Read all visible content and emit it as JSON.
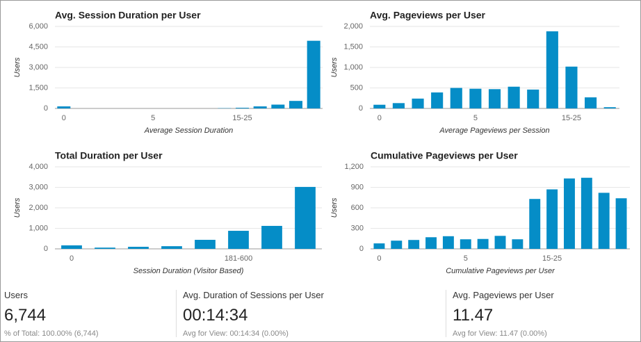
{
  "chart_data": [
    {
      "type": "bar",
      "title": "Avg. Session Duration per User",
      "y_label": "Users",
      "x_label": "Average Session Duration",
      "color": "#058dc7",
      "categories": [
        "0",
        null,
        null,
        null,
        null,
        "5",
        null,
        null,
        null,
        null,
        "15-25",
        null,
        null,
        null,
        null
      ],
      "values": [
        150,
        0,
        0,
        0,
        0,
        0,
        0,
        0,
        0,
        20,
        50,
        150,
        280,
        550,
        4950
      ],
      "ylim": [
        0,
        6000
      ],
      "yticks": [
        0,
        {
          "value": 1500,
          "label": "1,500"
        },
        {
          "value": 3000,
          "label": "3,000"
        },
        {
          "value": 4500,
          "label": "4,500"
        },
        {
          "value": 6000,
          "label": "6,000"
        }
      ],
      "grid": true
    },
    {
      "type": "bar",
      "title": "Avg. Pageviews per User",
      "y_label": "Users",
      "x_label": "Average Pageviews per Session",
      "color": "#058dc7",
      "categories": [
        "0",
        null,
        null,
        null,
        null,
        "5",
        null,
        null,
        null,
        null,
        "15-25",
        null,
        null
      ],
      "values": [
        90,
        130,
        240,
        390,
        500,
        480,
        470,
        530,
        460,
        1880,
        1020,
        270,
        30
      ],
      "ylim": [
        0,
        2000
      ],
      "yticks": [
        0,
        500,
        {
          "value": 1000,
          "label": "1,000"
        },
        {
          "value": 1500,
          "label": "1,500"
        },
        {
          "value": 2000,
          "label": "2,000"
        }
      ],
      "grid": true
    },
    {
      "type": "bar",
      "title": "Total Duration per User",
      "y_label": "Users",
      "x_label": "Session Duration (Visitor Based)",
      "color": "#058dc7",
      "categories": [
        "0",
        null,
        null,
        null,
        null,
        "181-600",
        null,
        null
      ],
      "values": [
        170,
        60,
        100,
        130,
        440,
        880,
        1120,
        3020
      ],
      "ylim": [
        0,
        4000
      ],
      "yticks": [
        0,
        {
          "value": 1000,
          "label": "1,000"
        },
        {
          "value": 2000,
          "label": "2,000"
        },
        {
          "value": 3000,
          "label": "3,000"
        },
        {
          "value": 4000,
          "label": "4,000"
        }
      ],
      "grid": true
    },
    {
      "type": "bar",
      "title": "Cumulative Pageviews per User",
      "y_label": "Users",
      "x_label": "Cumulative Pageviews per User",
      "color": "#058dc7",
      "categories": [
        "0",
        null,
        null,
        null,
        null,
        "5",
        null,
        null,
        null,
        null,
        "15-25",
        null,
        null,
        null,
        null
      ],
      "values": [
        80,
        120,
        130,
        170,
        185,
        140,
        145,
        190,
        140,
        730,
        870,
        1030,
        1040,
        820,
        740
      ],
      "ylim": [
        0,
        1200
      ],
      "yticks": [
        0,
        300,
        600,
        900,
        {
          "value": 1200,
          "label": "1,200"
        }
      ],
      "grid": true
    }
  ],
  "summary": [
    {
      "label": "Users",
      "value": "6,744",
      "note": "% of Total: 100.00% (6,744)"
    },
    {
      "label": "Avg. Duration of Sessions per User",
      "value": "00:14:34",
      "note": "Avg for View: 00:14:34 (0.00%)"
    },
    {
      "label": "Avg. Pageviews per User",
      "value": "11.47",
      "note": "Avg for View: 11.47 (0.00%)"
    }
  ]
}
